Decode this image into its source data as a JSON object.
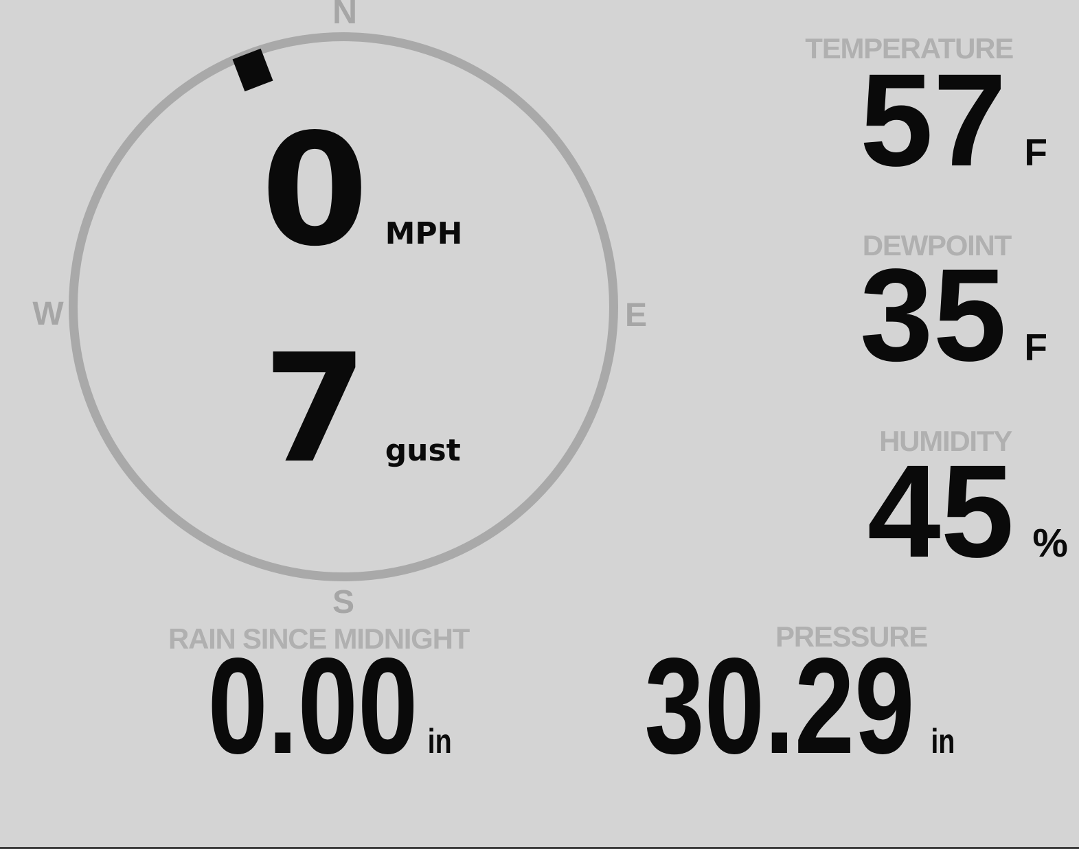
{
  "theme": {
    "background": "#d4d4d4",
    "label_color": "#b0b0b0",
    "compass_color": "#a9a9a9",
    "value_color": "#0a0a0a",
    "bottom_bar_color": "#3c3c3c"
  },
  "wind": {
    "compass_labels": {
      "n": "N",
      "e": "E",
      "s": "S",
      "w": "W"
    },
    "speed": {
      "value": "0",
      "unit": "MPH"
    },
    "gust": {
      "value": "7",
      "unit": "gust"
    },
    "direction": {
      "bearing_deg": 339
    }
  },
  "metrics": {
    "temperature": {
      "label": "TEMPERATURE",
      "value": "57",
      "unit": "F"
    },
    "dewpoint": {
      "label": "DEWPOINT",
      "value": "35",
      "unit": "F"
    },
    "humidity": {
      "label": "HUMIDITY",
      "value": "45",
      "unit": "%"
    },
    "rain": {
      "label": "RAIN SINCE MIDNIGHT",
      "value": "0.00",
      "unit": "in"
    },
    "pressure": {
      "label": "PRESSURE",
      "value": "30.29",
      "unit": "in"
    }
  }
}
